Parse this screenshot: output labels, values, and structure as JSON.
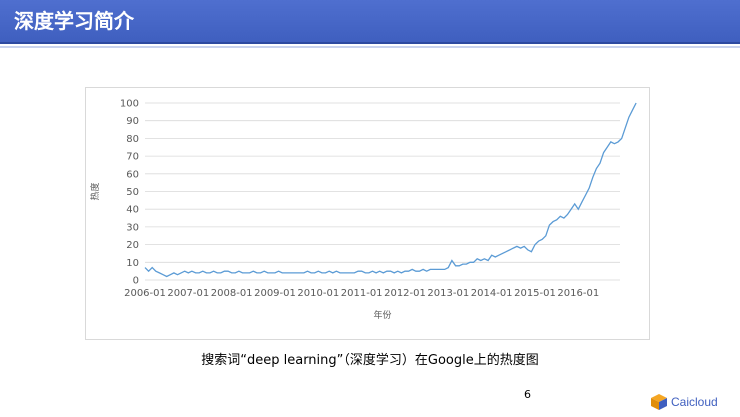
{
  "slide": {
    "title": "深度学习简介",
    "caption": "搜索词“deep learning”（深度学习）在Google上的热度图",
    "page_number": "6",
    "logo_text": "Caicloud"
  },
  "colors": {
    "title_bar": "#3f5fbf",
    "line": "#5b9bd5",
    "grid": "#d9d9d9"
  },
  "chart_data": {
    "type": "line",
    "xlabel": "年份",
    "ylabel": "热度",
    "ylim": [
      0,
      100
    ],
    "yticks": [
      "0",
      "10",
      "20",
      "30",
      "40",
      "50",
      "60",
      "70",
      "80",
      "90",
      "100"
    ],
    "xticks": [
      "2006-01",
      "2007-01",
      "2008-01",
      "2009-01",
      "2010-01",
      "2011-01",
      "2012-01",
      "2013-01",
      "2014-01",
      "2015-01",
      "2016-01"
    ],
    "x_start": "2006-01",
    "series": [
      {
        "values": [
          7,
          5,
          7,
          5,
          4,
          3,
          2,
          3,
          4,
          3,
          4,
          5,
          4,
          5,
          4,
          4,
          5,
          4,
          4,
          5,
          4,
          4,
          5,
          5,
          4,
          4,
          5,
          4,
          4,
          4,
          5,
          4,
          4,
          5,
          4,
          4,
          4,
          5,
          4,
          4,
          4,
          4,
          4,
          4,
          4,
          5,
          4,
          4,
          5,
          4,
          4,
          5,
          4,
          5,
          4,
          4,
          4,
          4,
          4,
          5,
          5,
          4,
          4,
          5,
          4,
          5,
          4,
          5,
          5,
          4,
          5,
          4,
          5,
          5,
          6,
          5,
          5,
          6,
          5,
          6,
          6,
          6,
          6,
          6,
          7,
          11,
          8,
          8,
          9,
          9,
          10,
          10,
          12,
          11,
          12,
          11,
          14,
          13,
          14,
          15,
          16,
          17,
          18,
          19,
          18,
          19,
          17,
          16,
          20,
          22,
          23,
          25,
          31,
          33,
          34,
          36,
          35,
          37,
          40,
          43,
          40,
          44,
          48,
          52,
          58,
          63,
          66,
          72,
          75,
          78,
          77,
          78,
          80,
          86,
          92,
          96,
          100
        ]
      }
    ]
  }
}
